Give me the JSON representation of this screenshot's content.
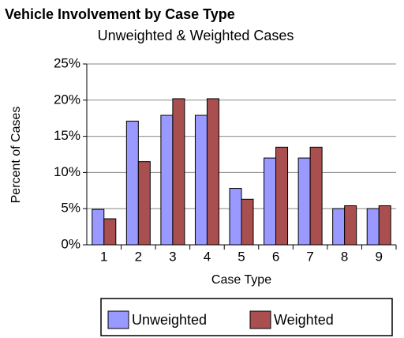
{
  "chart_data": {
    "type": "bar",
    "title": "Vehicle Involvement by Case Type",
    "subtitle": "Unweighted & Weighted Cases",
    "x_label": "Case Type",
    "y_label": "Percent of Cases",
    "categories": [
      "1",
      "2",
      "3",
      "4",
      "5",
      "6",
      "7",
      "8",
      "9"
    ],
    "series": [
      {
        "name": "Unweighted",
        "color": "#9999ff",
        "values": [
          4.9,
          17.1,
          17.9,
          17.9,
          7.8,
          12,
          12,
          5,
          5
        ]
      },
      {
        "name": "Weighted",
        "color": "#aa4f4f",
        "values": [
          3.6,
          11.5,
          20.2,
          20.2,
          6.3,
          13.5,
          13.5,
          5.4,
          5.4
        ]
      }
    ],
    "ylim": [
      0,
      25
    ],
    "yticks": [
      {
        "value": 0,
        "label": "0%"
      },
      {
        "value": 5,
        "label": "5%"
      },
      {
        "value": 10,
        "label": "10%"
      },
      {
        "value": 15,
        "label": "15%"
      },
      {
        "value": 20,
        "label": "20%"
      },
      {
        "value": 25,
        "label": "25%"
      }
    ],
    "grid": true,
    "legend": "bottom"
  }
}
